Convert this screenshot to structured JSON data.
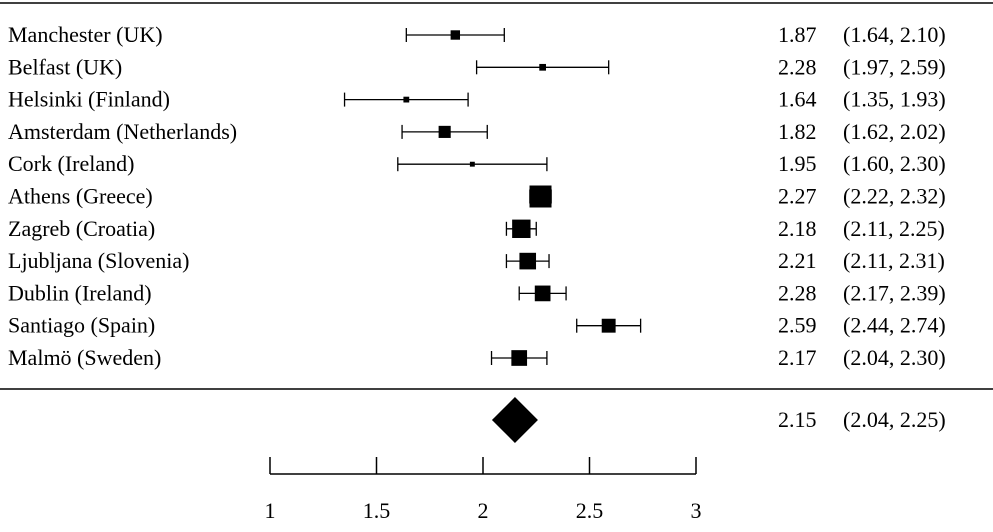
{
  "chart_data": {
    "type": "forest",
    "title": "",
    "xlabel": "",
    "ylabel": "",
    "xlim": [
      1,
      3
    ],
    "x_ticks": [
      1,
      1.5,
      2,
      2.5,
      3
    ],
    "x_tick_labels": [
      "1",
      "1.5",
      "2",
      "2.5",
      "3"
    ],
    "rows": [
      {
        "label": "Manchester (UK)",
        "estimate": 1.87,
        "lower": 1.64,
        "upper": 2.1,
        "estimate_text": "1.87",
        "ci_text": "(1.64, 2.10)",
        "weight": 0.3
      },
      {
        "label": "Belfast (UK)",
        "estimate": 2.28,
        "lower": 1.97,
        "upper": 2.59,
        "estimate_text": "2.28",
        "ci_text": "(1.97, 2.59)",
        "weight": 0.15
      },
      {
        "label": "Helsinki (Finland)",
        "estimate": 1.64,
        "lower": 1.35,
        "upper": 1.93,
        "estimate_text": "1.64",
        "ci_text": "(1.35, 1.93)",
        "weight": 0.1
      },
      {
        "label": "Amsterdam (Netherlands)",
        "estimate": 1.82,
        "lower": 1.62,
        "upper": 2.02,
        "estimate_text": "1.82",
        "ci_text": "(1.62, 2.02)",
        "weight": 0.45
      },
      {
        "label": "Cork (Ireland)",
        "estimate": 1.95,
        "lower": 1.6,
        "upper": 2.3,
        "estimate_text": "1.95",
        "ci_text": "(1.60, 2.30)",
        "weight": 0.05
      },
      {
        "label": "Athens (Greece)",
        "estimate": 2.27,
        "lower": 2.22,
        "upper": 2.32,
        "estimate_text": "2.27",
        "ci_text": "(2.22, 2.32)",
        "weight": 1.0
      },
      {
        "label": "Zagreb (Croatia)",
        "estimate": 2.18,
        "lower": 2.11,
        "upper": 2.25,
        "estimate_text": "2.18",
        "ci_text": "(2.11, 2.25)",
        "weight": 0.8
      },
      {
        "label": "Ljubljana (Slovenia)",
        "estimate": 2.21,
        "lower": 2.11,
        "upper": 2.31,
        "estimate_text": "2.21",
        "ci_text": "(2.11, 2.31)",
        "weight": 0.7
      },
      {
        "label": "Dublin (Ireland)",
        "estimate": 2.28,
        "lower": 2.17,
        "upper": 2.39,
        "estimate_text": "2.28",
        "ci_text": "(2.17, 2.39)",
        "weight": 0.65
      },
      {
        "label": "Santiago (Spain)",
        "estimate": 2.59,
        "lower": 2.44,
        "upper": 2.74,
        "estimate_text": "2.59",
        "ci_text": "(2.44, 2.74)",
        "weight": 0.55
      },
      {
        "label": "Malmö (Sweden)",
        "estimate": 2.17,
        "lower": 2.04,
        "upper": 2.3,
        "estimate_text": "2.17",
        "ci_text": "(2.04, 2.30)",
        "weight": 0.65
      }
    ],
    "pooled": {
      "estimate": 2.15,
      "lower": 2.04,
      "upper": 2.25,
      "estimate_text": "2.15",
      "ci_text": "(2.04, 2.25)"
    },
    "grid": false,
    "legend": "none",
    "colors": {
      "mark": "#000000",
      "line": "#000000",
      "background": "#ffffff"
    }
  }
}
